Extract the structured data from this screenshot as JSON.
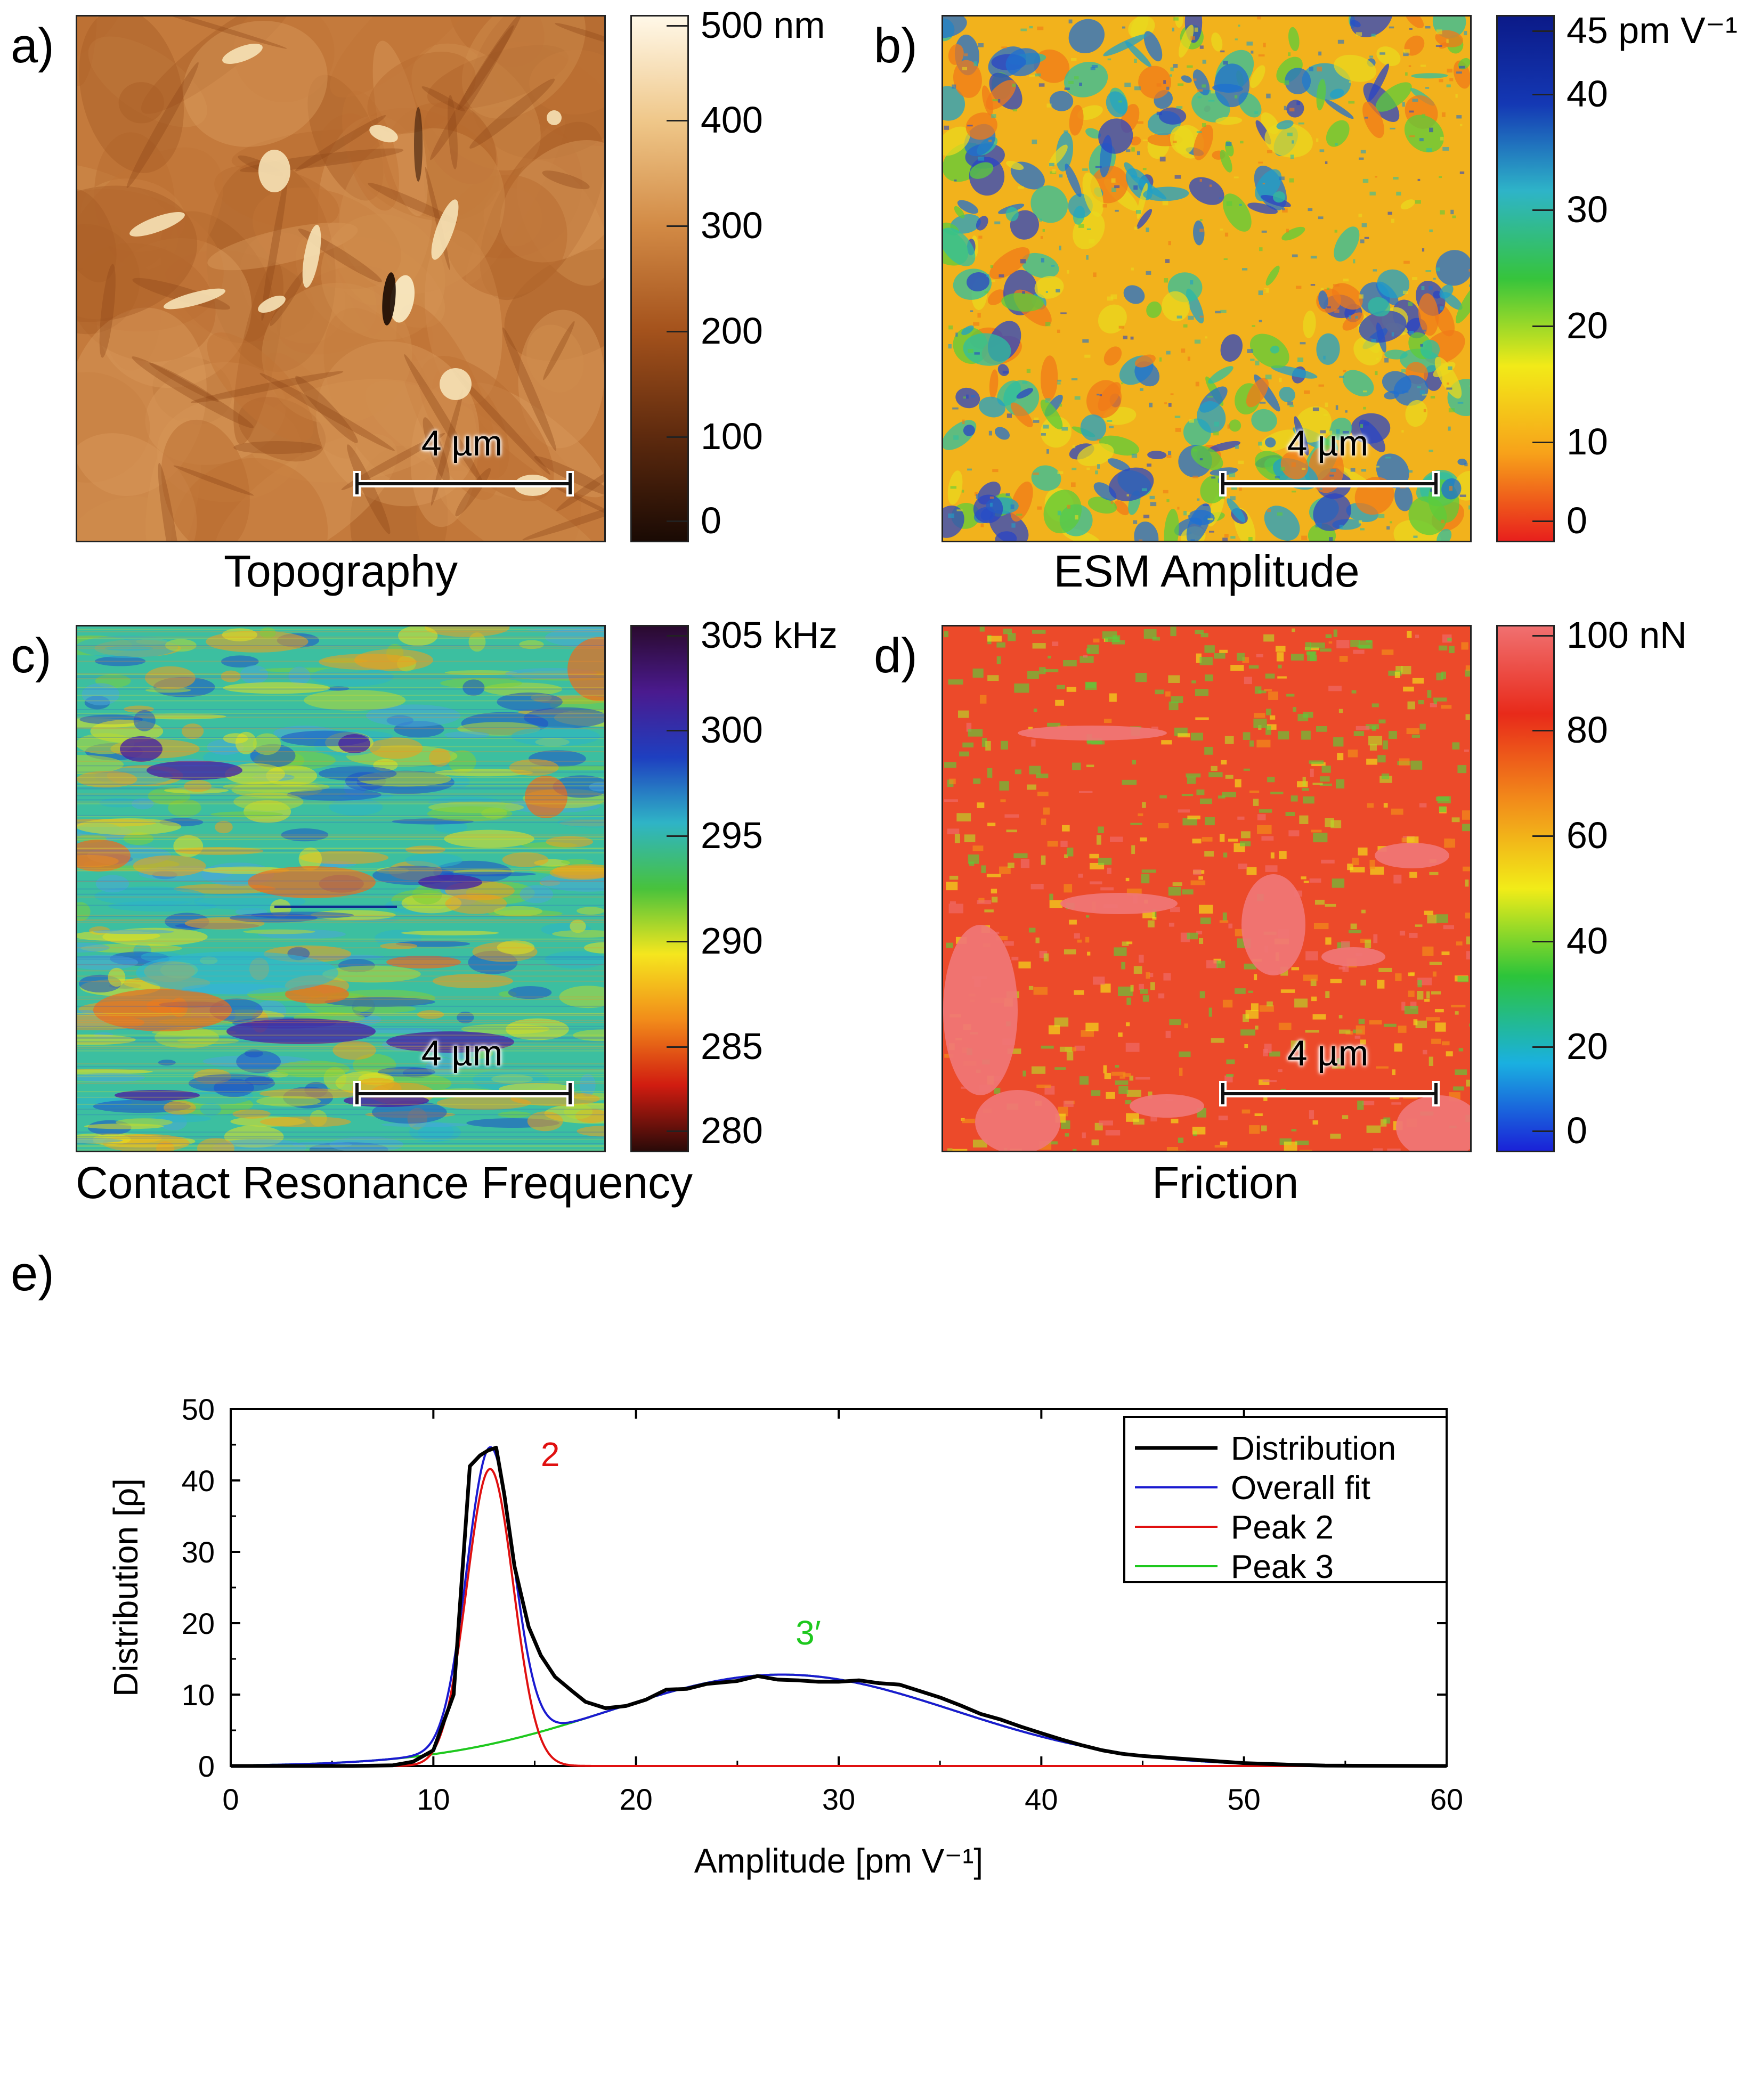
{
  "panels": {
    "a": {
      "letter": "a)",
      "caption": "Topography",
      "scalebar": "4 µm",
      "colorbar_labels": [
        "500 nm",
        "400",
        "300",
        "200",
        "100",
        "0"
      ],
      "colors": [
        "#1a0a04",
        "#5e2a0e",
        "#a4521c",
        "#d28a45",
        "#efc789",
        "#fff8e8"
      ]
    },
    "b": {
      "letter": "b)",
      "caption": "ESM Amplitude",
      "scalebar": "4 µm",
      "colorbar_labels": [
        "45 pm V⁻¹",
        "40",
        "30",
        "20",
        "10",
        "0"
      ],
      "colors": [
        "#e8201c",
        "#f7a21a",
        "#f2ea18",
        "#36c43c",
        "#2eb4c8",
        "#1438b4",
        "#0b1a88"
      ]
    },
    "c": {
      "letter": "c)",
      "caption": "Contact Resonance Frequency",
      "scalebar": "4 µm",
      "colorbar_labels": [
        "305 kHz",
        "300",
        "295",
        "290",
        "285",
        "280"
      ],
      "colors": [
        "#2a0a08",
        "#d11c10",
        "#f28c1a",
        "#f5e61e",
        "#48c23c",
        "#2fb4c6",
        "#1e3fc0",
        "#4a1a8e",
        "#2a0a2e"
      ]
    },
    "d": {
      "letter": "d)",
      "caption": "Friction",
      "scalebar": "4 µm",
      "colorbar_labels": [
        "100 nN",
        "80",
        "60",
        "40",
        "20",
        "0"
      ],
      "colors": [
        "#1a22d8",
        "#1ab0e0",
        "#2cc43a",
        "#f2ec18",
        "#f28c1a",
        "#e82a1a",
        "#f07070"
      ]
    }
  },
  "plot": {
    "letter": "e)",
    "xlabel": "Amplitude [pm V⁻¹]",
    "ylabel": "Distribution [ρ]",
    "annotation_peak2": "2",
    "annotation_peak3": "3′",
    "colors": {
      "distribution": "#000000",
      "overall": "#1a1ad0",
      "peak2": "#e01010",
      "peak3": "#1ec81e"
    }
  },
  "chart_data": {
    "type": "line",
    "title": "",
    "xlabel": "Amplitude [pm V⁻¹]",
    "ylabel": "Distribution [ρ]",
    "xlim": [
      0,
      60
    ],
    "ylim": [
      0,
      50
    ],
    "xticks": [
      0,
      10,
      20,
      30,
      40,
      50,
      60
    ],
    "yticks": [
      0,
      10,
      20,
      30,
      40,
      50
    ],
    "legend_position": "top-right",
    "series": [
      {
        "name": "Distribution",
        "color": "#000000",
        "points": [
          [
            0,
            0
          ],
          [
            6,
            0
          ],
          [
            8,
            0.1
          ],
          [
            9,
            0.6
          ],
          [
            10,
            2.2
          ],
          [
            11,
            10
          ],
          [
            11.8,
            42
          ],
          [
            12.3,
            43.5
          ],
          [
            12.7,
            44.2
          ],
          [
            13.1,
            44.6
          ],
          [
            13.5,
            38
          ],
          [
            14,
            28
          ],
          [
            14.7,
            19.5
          ],
          [
            15.3,
            15.5
          ],
          [
            16,
            12.5
          ],
          [
            16.8,
            10.6
          ],
          [
            17.5,
            9
          ],
          [
            18.5,
            8.1
          ],
          [
            19.5,
            8.4
          ],
          [
            20.5,
            9.3
          ],
          [
            21.5,
            10.7
          ],
          [
            22.5,
            10.8
          ],
          [
            23.5,
            11.5
          ],
          [
            25,
            11.9
          ],
          [
            26,
            12.6
          ],
          [
            27,
            12.1
          ],
          [
            28,
            12
          ],
          [
            29,
            11.8
          ],
          [
            30,
            11.8
          ],
          [
            31,
            12
          ],
          [
            32,
            11.6
          ],
          [
            33,
            11.4
          ],
          [
            34,
            10.5
          ],
          [
            35,
            9.6
          ],
          [
            36,
            8.5
          ],
          [
            37,
            7.3
          ],
          [
            38,
            6.5
          ],
          [
            39,
            5.5
          ],
          [
            40,
            4.6
          ],
          [
            41,
            3.7
          ],
          [
            42,
            2.9
          ],
          [
            43,
            2.2
          ],
          [
            44,
            1.7
          ],
          [
            45,
            1.4
          ],
          [
            46,
            1.2
          ],
          [
            47,
            1
          ],
          [
            48,
            0.8
          ],
          [
            49,
            0.6
          ],
          [
            50,
            0.4
          ],
          [
            52,
            0.2
          ],
          [
            54,
            0.05
          ],
          [
            60,
            0
          ]
        ]
      },
      {
        "name": "Overall fit",
        "color": "#1a1ad0",
        "function": "peak2 + peak3"
      },
      {
        "name": "Peak 2",
        "color": "#e01010",
        "function": "gaussian",
        "center": 12.8,
        "amplitude": 41.6,
        "sigma": 1.15,
        "x_range": [
          0,
          60
        ]
      },
      {
        "name": "Peak 3",
        "color": "#1ec81e",
        "function": "gaussian",
        "center": 27.2,
        "amplitude": 12.8,
        "sigma": 8.5,
        "x_range": [
          0,
          54.2
        ]
      }
    ],
    "legend": [
      "Distribution",
      "Overall fit",
      "Peak 2",
      "Peak 3"
    ],
    "annotations": [
      {
        "text": "2",
        "x": 15.3,
        "y": 42
      },
      {
        "text": "3′",
        "x": 28.5,
        "y": 17
      }
    ]
  }
}
